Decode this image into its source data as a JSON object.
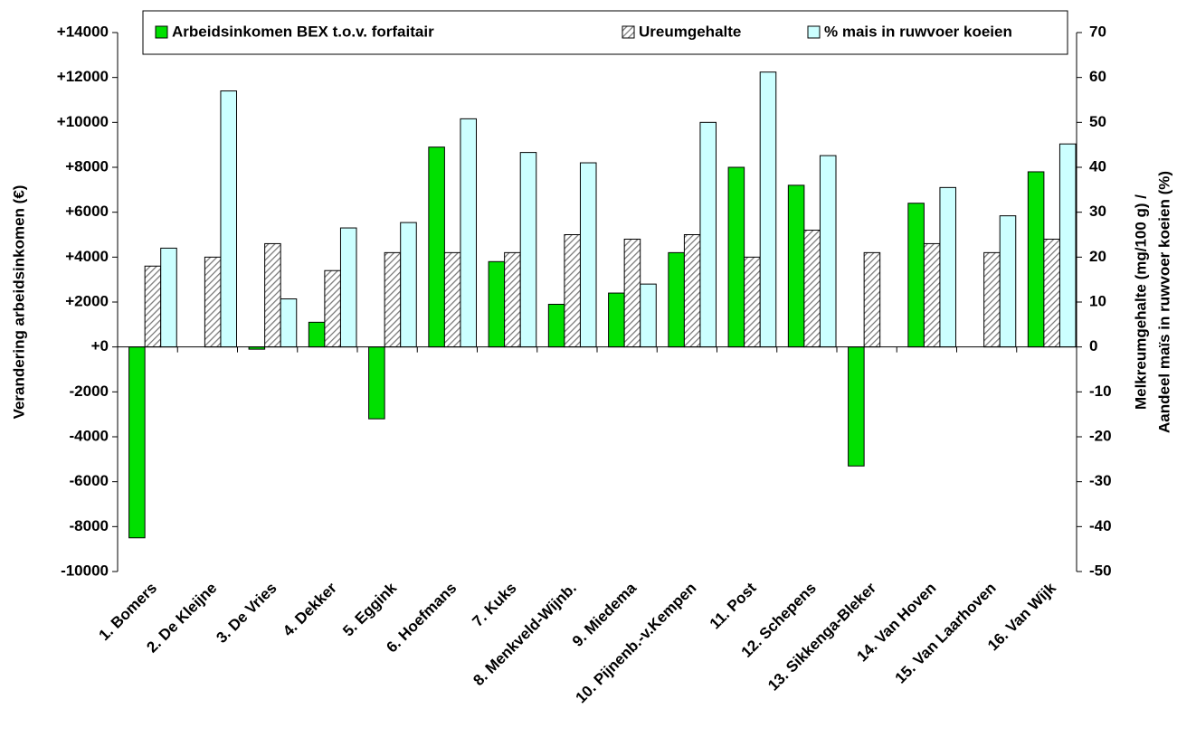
{
  "chart_data": {
    "type": "bar",
    "ylabel": "Verandering arbeidsinkomen (€)",
    "y2label": [
      "Melkreumgehalte (mg/100 g) /",
      "Aandeel maïs in ruwvoer koeien (%)"
    ],
    "categories": [
      "1. Bomers",
      "2. De Kleijne",
      "3. De Vries",
      "4. Dekker",
      "5. Eggink",
      "6. Hoefmans",
      "7. Kuks",
      "8. Menkveld-Wijnb.",
      "9. Miedema",
      "10. Pijnenb.-v.Kempen",
      "11. Post",
      "12. Schepens",
      "13. Sikkenga-Bleker",
      "14. Van Hoven",
      "15. Van Laarhoven",
      "16. Van Wijk"
    ],
    "series": [
      {
        "name": "Arbeidsinkomen BEX t.o.v. forfaitair",
        "color": "#00e000",
        "axis": "y",
        "values": [
          -8500,
          null,
          -100,
          1100,
          -3200,
          8900,
          3800,
          1900,
          2400,
          4200,
          8000,
          7200,
          -5300,
          6400,
          null,
          7800
        ]
      },
      {
        "name": "Ureumgehalte",
        "color": "#808080",
        "pattern": "hatch",
        "axis": "y2",
        "values": [
          18,
          20,
          23,
          17,
          21,
          21,
          21,
          25,
          24,
          25,
          20,
          26,
          21,
          23,
          21,
          24
        ]
      },
      {
        "name": "% mais in ruwvoer koeien",
        "color": "#ccffff",
        "axis": "y2",
        "values": [
          22,
          57,
          10.7,
          26.5,
          27.7,
          50.8,
          43.3,
          41,
          14,
          50,
          61.2,
          42.6,
          null,
          35.5,
          29.2,
          45.2
        ]
      }
    ],
    "ylim": [
      -10000,
      14000
    ],
    "yticks": [
      {
        "value": -10000,
        "label": "-10000"
      },
      {
        "value": -8000,
        "label": "-8000"
      },
      {
        "value": -6000,
        "label": "-6000"
      },
      {
        "value": -4000,
        "label": "-4000"
      },
      {
        "value": -2000,
        "label": "-2000"
      },
      {
        "value": 0,
        "label": "+0"
      },
      {
        "value": 2000,
        "label": "+2000"
      },
      {
        "value": 4000,
        "label": "+4000"
      },
      {
        "value": 6000,
        "label": "+6000"
      },
      {
        "value": 8000,
        "label": "+8000"
      },
      {
        "value": 10000,
        "label": "+10000"
      },
      {
        "value": 12000,
        "label": "+12000"
      },
      {
        "value": 14000,
        "label": "+14000"
      }
    ],
    "y2lim": [
      -50,
      70
    ],
    "y2ticks": [
      -50,
      -40,
      -30,
      -20,
      -10,
      0,
      10,
      20,
      30,
      40,
      50,
      60,
      70
    ],
    "grid": false
  }
}
